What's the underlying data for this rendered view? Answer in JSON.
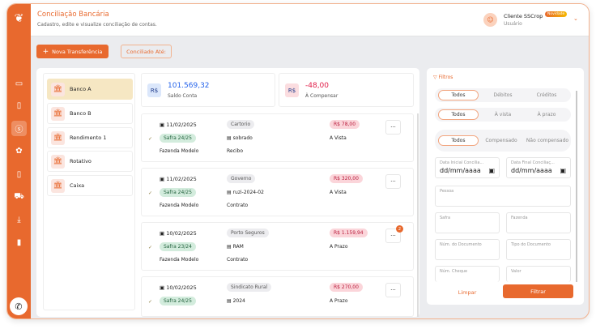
{
  "colors": {
    "brand": "#e8692e",
    "positive": "#2563eb",
    "negative": "#e11d48"
  },
  "header": {
    "title": "Conciliação Bancária",
    "subtitle": "Cadastro, edite e visualize conciliação de contas.",
    "user_name": "Cliente SSCrop",
    "user_role": "Usuário",
    "badge": "Novidade"
  },
  "sidebar": {
    "items": [
      {
        "icon": "laptop-icon",
        "glyph": "▭"
      },
      {
        "icon": "document-icon",
        "glyph": "▯"
      },
      {
        "icon": "money-icon",
        "glyph": "$"
      },
      {
        "icon": "plant-icon",
        "glyph": "✿"
      },
      {
        "icon": "phone-icon",
        "glyph": "▯"
      },
      {
        "icon": "cart-icon",
        "glyph": "⛟"
      },
      {
        "icon": "download-icon",
        "glyph": "⤓"
      },
      {
        "icon": "chart-icon",
        "glyph": "▮"
      }
    ],
    "whatsapp": "whatsapp-icon"
  },
  "toolbar": {
    "new_transfer": "Nova Transferência",
    "reconciled_until": "Conciliado Até:"
  },
  "banks": [
    {
      "label": "Banco A",
      "active": true
    },
    {
      "label": "Banco B"
    },
    {
      "label": "Rendimento 1"
    },
    {
      "label": "Rotativo"
    },
    {
      "label": "Caixa"
    }
  ],
  "summary": {
    "currency": "R$",
    "balance": "101.569,32",
    "balance_label": "Saldo Conta",
    "pending": "-48,00",
    "pending_label": "À Compensar"
  },
  "transactions": [
    {
      "date": "11/02/2025",
      "safra": "Safra 24/25",
      "farm": "Fazenda Modelo",
      "person": "Cartorio",
      "doc": "sobrado",
      "doc_type": "Recibo",
      "amount": "R$ 78,00",
      "term": "A Vista"
    },
    {
      "date": "11/02/2025",
      "safra": "Safra 24/25",
      "farm": "Fazenda Modelo",
      "person": "Governo",
      "doc": "ruzi-2024-02",
      "doc_type": "Contrato",
      "amount": "R$ 320,00",
      "term": "A Vista"
    },
    {
      "date": "10/02/2025",
      "safra": "Safra 23/24",
      "farm": "Fazenda Modelo",
      "person": "Porto Seguros",
      "doc": "RAM",
      "doc_type": "Contrato",
      "amount": "R$ 1.159,94",
      "term": "A Prazo",
      "badge": "2"
    },
    {
      "date": "10/02/2025",
      "safra": "Safra 24/25",
      "farm": "",
      "person": "Sindicato Rural",
      "doc": "2024",
      "doc_type": "",
      "amount": "R$ 270,00",
      "term": "A Prazo"
    }
  ],
  "filters": {
    "title": "Filtros",
    "seg1": [
      "Todos",
      "Débitos",
      "Créditos"
    ],
    "seg2": [
      "Todos",
      "À vista",
      "À prazo"
    ],
    "seg3": [
      "Todos",
      "Compensado",
      "Não compensado"
    ],
    "date_start_label": "Data Inicial Concilia...",
    "date_end_label": "Data Final Conciliaç...",
    "date_placeholder": "dd/mm/aaaa",
    "pessoa": "Pessoa",
    "safra": "Safra",
    "fazenda": "Fazenda",
    "num_doc": "Núm. do Documento",
    "tipo_doc": "Tipo do Documento",
    "num_cheque": "Núm. Cheque",
    "valor": "Valor",
    "clear": "Limpar",
    "apply": "Filtrar"
  }
}
